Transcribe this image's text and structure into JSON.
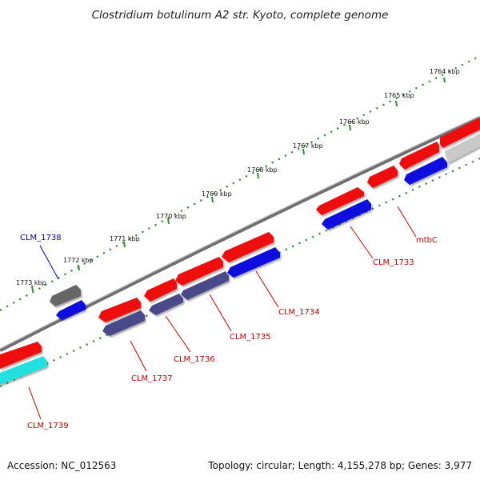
{
  "title": "Clostridium botulinum A2 str. Kyoto, complete genome",
  "footer": {
    "accession": "Accession: NC_012563",
    "summary": "Topology: circular; Length: 4,155,278 bp; Genes: 3,977"
  },
  "colors": {
    "backbone": "#7d7d7d",
    "tick_dots": "#2f8f2f",
    "forward_gene": "#ee1111",
    "reverse_gene": "#1111dd",
    "operon_gene": "#4a4a8a",
    "rna_gene": "#22e0e0",
    "other_gene": "#666666",
    "label_red": "#cc0000",
    "label_blue": "#0000cc"
  },
  "ticks": [
    {
      "label": "1764 kbp"
    },
    {
      "label": "1765 kbp"
    },
    {
      "label": "1766 kbp"
    },
    {
      "label": "1767 kbp"
    },
    {
      "label": "1768 kbp"
    },
    {
      "label": "1769 kbp"
    },
    {
      "label": "1770 kbp"
    },
    {
      "label": "1771 kbp"
    },
    {
      "label": "1772 kbp"
    },
    {
      "label": "1773 kbp"
    }
  ],
  "gene_labels": [
    {
      "name": "mtbC"
    },
    {
      "name": "CLM_1733"
    },
    {
      "name": "CLM_1734"
    },
    {
      "name": "CLM_1735"
    },
    {
      "name": "CLM_1736"
    },
    {
      "name": "CLM_1737"
    },
    {
      "name": "CLM_1738"
    },
    {
      "name": "CLM_1739"
    }
  ]
}
